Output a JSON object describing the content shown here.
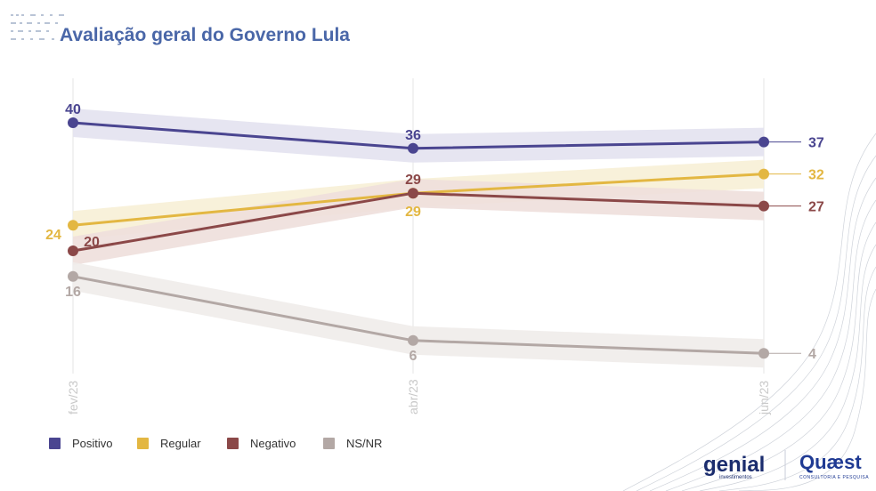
{
  "chart_data": {
    "type": "line",
    "title": "Avaliação geral do Governo Lula",
    "x": [
      "fev/23",
      "abr/23",
      "jun/23"
    ],
    "ylim": [
      0,
      45
    ],
    "grid": "vertical",
    "legend_position": "bottom-left",
    "series": [
      {
        "name": "Positivo",
        "values": [
          40,
          36,
          37
        ],
        "color": "#4a4590",
        "band": "#e3e2ef"
      },
      {
        "name": "Regular",
        "values": [
          24,
          29,
          32
        ],
        "color": "#e3b742",
        "band": "#f7efd6"
      },
      {
        "name": "Negativo",
        "values": [
          20,
          29,
          27
        ],
        "color": "#8b4848",
        "band": "#eedfdc"
      },
      {
        "name": "NS/NR",
        "values": [
          16,
          6,
          4
        ],
        "color": "#b3a8a5",
        "band": "#efecea"
      }
    ],
    "data_labels": {
      "Positivo": [
        "40",
        "36",
        "37"
      ],
      "Regular": [
        "24",
        "29",
        "32"
      ],
      "Negativo": [
        "20",
        "29",
        "27"
      ],
      "NS/NR": [
        "16",
        "6",
        "4"
      ]
    }
  },
  "colors": {
    "title": "#4a67a8",
    "grid": "#e4e4e4",
    "tick": "#c9c9c9"
  },
  "branding": {
    "genial": "genial",
    "genial_sub": "investimentos",
    "quaest": "Quæst",
    "quaest_sub": "CONSULTORIA E PESQUISA"
  }
}
